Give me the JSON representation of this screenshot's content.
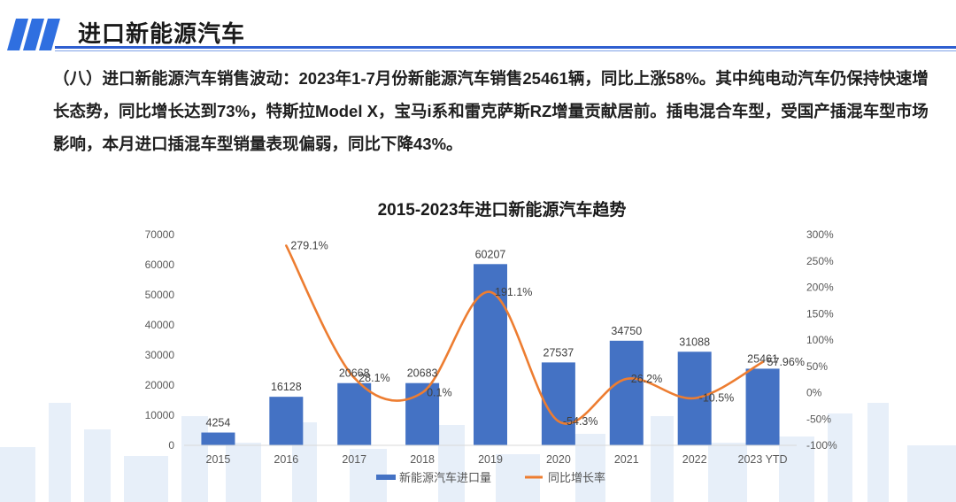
{
  "header": {
    "title": "进口新能源汽车"
  },
  "summary": {
    "text": "（八）进口新能源汽车销售波动：2023年1-7月份新能源汽车销售25461辆，同比上涨58%。其中纯电动汽车仍保持快速增长态势，同比增长达到73%，特斯拉Model X，宝马i系和雷克萨斯RZ增量贡献居前。插电混合车型，受国产插混车型市场影响，本月进口插混车型销量表现偏弱，同比下降43%。"
  },
  "colors": {
    "bar": "#4472c4",
    "line": "#ed7d31",
    "accent": "#2f5fd0",
    "skyline": "#dfeaf7"
  },
  "chart_data": {
    "type": "bar",
    "title": "2015-2023年进口新能源汽车趋势",
    "categories": [
      "2015",
      "2016",
      "2017",
      "2018",
      "2019",
      "2020",
      "2021",
      "2022",
      "2023 YTD"
    ],
    "series": [
      {
        "name": "新能源汽车进口量",
        "type": "bar",
        "axis": "left",
        "values": [
          4254,
          16128,
          20668,
          20683,
          60207,
          27537,
          34750,
          31088,
          25461
        ],
        "labels": [
          "4254",
          "16128",
          "20668",
          "20683",
          "60207",
          "27537",
          "34750",
          "31088",
          "25461"
        ]
      },
      {
        "name": "同比增长率",
        "type": "line",
        "axis": "right",
        "values": [
          null,
          279.1,
          28.1,
          0.1,
          191.1,
          -54.3,
          26.2,
          -10.5,
          57.96
        ],
        "labels": [
          "",
          "279.1%",
          "28.1%",
          "0.1%",
          "191.1%",
          "-54.3%",
          "26.2%",
          "-10.5%",
          "57.96%"
        ]
      }
    ],
    "ylim_left": [
      0,
      70000
    ],
    "yticks_left": [
      "0",
      "10000",
      "20000",
      "30000",
      "40000",
      "50000",
      "60000",
      "70000"
    ],
    "ylim_right": [
      -100,
      300
    ],
    "yticks_right": [
      "-100%",
      "-50%",
      "0%",
      "50%",
      "100%",
      "150%",
      "200%",
      "250%",
      "300%"
    ],
    "legend": "bottom-center",
    "grid": false
  }
}
